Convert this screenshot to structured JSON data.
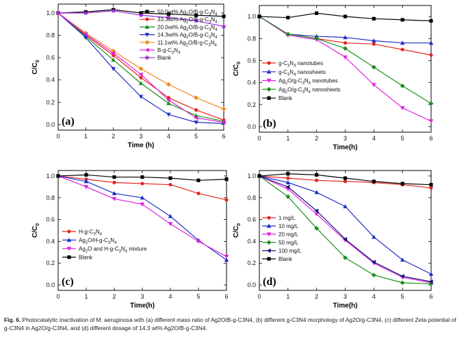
{
  "figure": {
    "caption_label": "Fig. 6.",
    "caption_text": "Photocatalytic inactivation of M. aeruginosa with (a) different mass ratio of Ag2O/B-g-C3N4, (b) different g-C3N4 morphology of Ag2O/g-C3N4, (c) different Zeta potential of g-C3N4 in Ag2O/g-C3N4, and (d) different dosage of 14.3 wt% Ag2O/B-g-C3N4."
  },
  "chart_data": [
    {
      "type": "line",
      "panel_label": "(a)",
      "xlabel": "Time (h)",
      "ylabel": "C/C0",
      "xlim": [
        0,
        6
      ],
      "ylim": [
        -0.05,
        1.08
      ],
      "xticks": [
        0,
        1,
        2,
        3,
        4,
        5,
        6
      ],
      "yticks": [
        0.0,
        0.2,
        0.4,
        0.6,
        0.8,
        1.0
      ],
      "x": [
        0,
        1,
        2,
        3,
        4,
        5,
        6
      ],
      "legend_position": "top-right",
      "series": [
        {
          "name": "50.0wt% Ag2O/B-g-C3N4",
          "color": "#000000",
          "marker": "square",
          "values": [
            1.0,
            1.01,
            1.03,
            1.0,
            0.99,
            0.98,
            0.97
          ]
        },
        {
          "name": "33.3wt% Ag2O/B-g-C3N4",
          "color": "#e8231f",
          "marker": "circle",
          "values": [
            1.0,
            0.8,
            0.62,
            0.42,
            0.24,
            0.13,
            0.04
          ]
        },
        {
          "name": "20.0wt% Ag2O/B-g-C3N4",
          "color": "#1a8f1a",
          "marker": "triangle-up",
          "values": [
            1.0,
            0.79,
            0.58,
            0.37,
            0.19,
            0.08,
            0.03
          ]
        },
        {
          "name": "14.3wt% Ag2O/B-g-C3N4",
          "color": "#1f2fc8",
          "marker": "triangle-down",
          "values": [
            1.0,
            0.78,
            0.5,
            0.25,
            0.09,
            0.02,
            0.01
          ]
        },
        {
          "name": "11.1wt% Ag2O/B-g-C3N4",
          "color": "#f08a1c",
          "marker": "diamond",
          "values": [
            1.0,
            0.82,
            0.66,
            0.5,
            0.36,
            0.24,
            0.14
          ]
        },
        {
          "name": "B-g-C3N4",
          "color": "#e020e0",
          "marker": "triangle-left",
          "values": [
            1.0,
            0.81,
            0.64,
            0.45,
            0.22,
            0.06,
            0.02
          ]
        },
        {
          "name": "Blank",
          "color": "#9a2bd6",
          "marker": "star",
          "values": [
            1.0,
            1.0,
            1.02,
            0.98,
            0.96,
            0.93,
            0.88
          ]
        }
      ]
    },
    {
      "type": "line",
      "panel_label": "(b)",
      "xlabel": "Time(h)",
      "ylabel": "C/C0",
      "xlim": [
        0,
        6
      ],
      "ylim": [
        -0.05,
        1.1
      ],
      "xticks": [
        0,
        1,
        2,
        3,
        4,
        5,
        6
      ],
      "yticks": [
        0.0,
        0.2,
        0.4,
        0.6,
        0.8,
        1.0
      ],
      "x": [
        0,
        1,
        2,
        3,
        4,
        5,
        6
      ],
      "legend_position": "middle-left",
      "series": [
        {
          "name": "g-C3N4 nanotubes",
          "color": "#e8231f",
          "marker": "circle",
          "values": [
            1.0,
            0.84,
            0.8,
            0.76,
            0.75,
            0.7,
            0.65
          ]
        },
        {
          "name": "g-C3N4 nanosheets",
          "color": "#1f2fc8",
          "marker": "triangle-up",
          "values": [
            1.0,
            0.84,
            0.82,
            0.81,
            0.78,
            0.76,
            0.76
          ]
        },
        {
          "name": "Ag2O/g-C3N4 nanotubes",
          "color": "#e020e0",
          "marker": "triangle-down",
          "values": [
            1.0,
            0.83,
            0.79,
            0.63,
            0.38,
            0.17,
            0.05
          ]
        },
        {
          "name": "Ag2O/g-C3N4 nanosheets",
          "color": "#1a8f1a",
          "marker": "diamond",
          "values": [
            1.0,
            0.84,
            0.8,
            0.71,
            0.54,
            0.37,
            0.21
          ]
        },
        {
          "name": "Blank",
          "color": "#000000",
          "marker": "square",
          "values": [
            1.0,
            0.99,
            1.03,
            1.0,
            0.98,
            0.97,
            0.96
          ]
        }
      ]
    },
    {
      "type": "line",
      "panel_label": "(c)",
      "xlabel": "Time(h)",
      "ylabel": "C/C0",
      "xlim": [
        0,
        6
      ],
      "ylim": [
        -0.05,
        1.05
      ],
      "xticks": [
        0,
        1,
        2,
        3,
        4,
        5,
        6
      ],
      "yticks": [
        0.0,
        0.2,
        0.4,
        0.6,
        0.8,
        1.0
      ],
      "x": [
        0,
        1,
        2,
        3,
        4,
        5,
        6
      ],
      "legend_position": "bottom-left",
      "series": [
        {
          "name": "H-g-C3N4",
          "color": "#e8231f",
          "marker": "circle",
          "values": [
            1.0,
            0.97,
            0.94,
            0.93,
            0.92,
            0.84,
            0.78
          ]
        },
        {
          "name": "Ag2O/H-g-C3N4",
          "color": "#1f2fc8",
          "marker": "triangle-up",
          "values": [
            1.0,
            0.95,
            0.84,
            0.8,
            0.63,
            0.41,
            0.23
          ]
        },
        {
          "name": "Ag2O and H-g-C3N4 mixture",
          "color": "#e020e0",
          "marker": "triangle-down",
          "values": [
            1.0,
            0.9,
            0.79,
            0.74,
            0.56,
            0.4,
            0.26
          ]
        },
        {
          "name": "Blank",
          "color": "#000000",
          "marker": "square",
          "values": [
            1.0,
            1.01,
            0.99,
            0.99,
            0.98,
            0.96,
            0.97
          ]
        }
      ]
    },
    {
      "type": "line",
      "panel_label": "(d)",
      "xlabel": "Time(h)",
      "ylabel": "C/C0",
      "xlim": [
        0,
        6
      ],
      "ylim": [
        -0.05,
        1.05
      ],
      "xticks": [
        0,
        1,
        2,
        3,
        4,
        5,
        6
      ],
      "yticks": [
        0.0,
        0.2,
        0.4,
        0.6,
        0.8,
        1.0
      ],
      "x": [
        0,
        1,
        2,
        3,
        4,
        5,
        6
      ],
      "legend_position": "bottom-left",
      "series": [
        {
          "name": "1 mg/L",
          "color": "#e8231f",
          "marker": "circle",
          "values": [
            1.0,
            0.98,
            0.96,
            0.95,
            0.94,
            0.92,
            0.89
          ]
        },
        {
          "name": "10 mg/L",
          "color": "#1f2fc8",
          "marker": "triangle-up",
          "values": [
            1.0,
            0.94,
            0.85,
            0.72,
            0.44,
            0.23,
            0.1
          ]
        },
        {
          "name": "20 mg/L",
          "color": "#e020e0",
          "marker": "triangle-down",
          "values": [
            1.0,
            0.88,
            0.65,
            0.41,
            0.2,
            0.07,
            0.02
          ]
        },
        {
          "name": "50 mg/L",
          "color": "#1a8f1a",
          "marker": "diamond",
          "values": [
            1.0,
            0.81,
            0.52,
            0.25,
            0.09,
            0.02,
            0.01
          ]
        },
        {
          "name": "100 mg/L",
          "color": "#14147a",
          "marker": "triangle-left",
          "values": [
            1.0,
            0.9,
            0.68,
            0.42,
            0.21,
            0.08,
            0.03
          ]
        },
        {
          "name": "Blank",
          "color": "#000000",
          "marker": "square",
          "values": [
            1.0,
            1.02,
            1.01,
            0.98,
            0.95,
            0.93,
            0.92
          ]
        }
      ]
    }
  ]
}
